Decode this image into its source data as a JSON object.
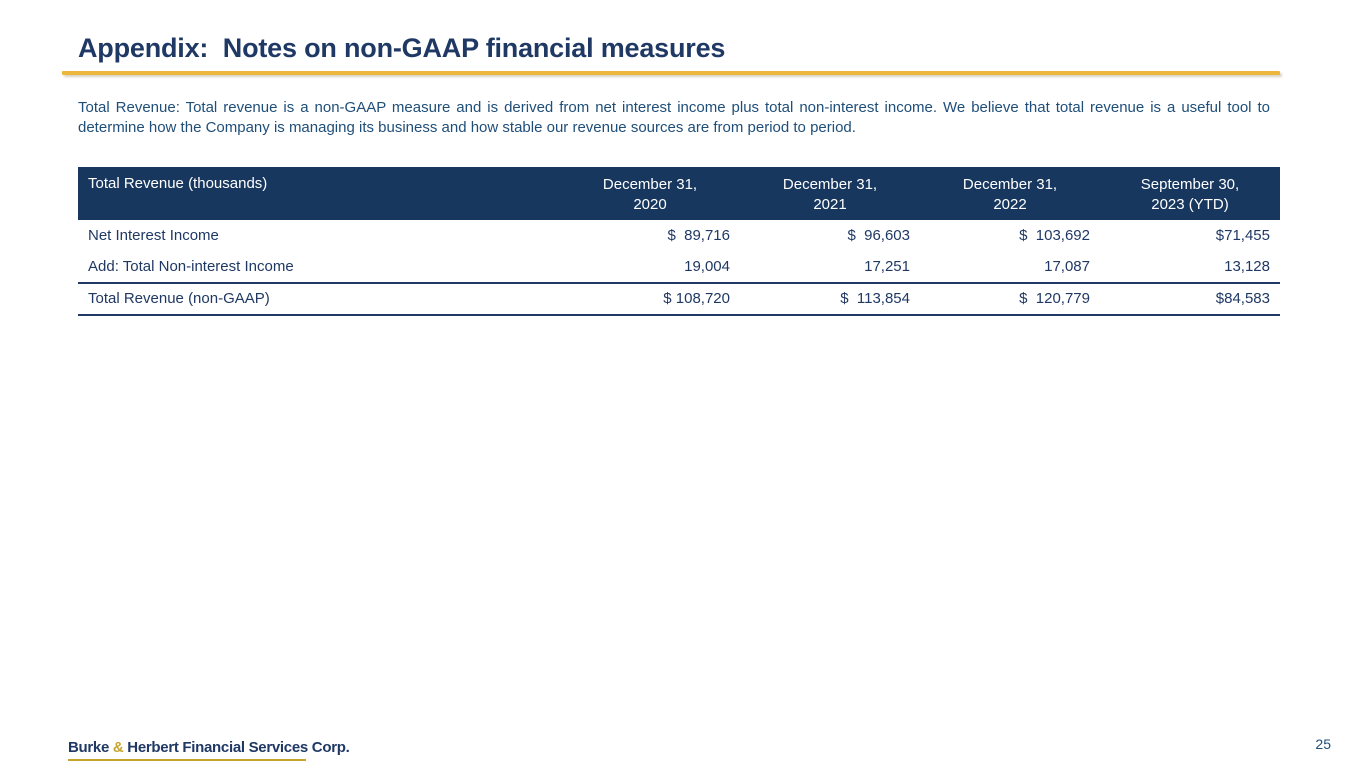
{
  "colors": {
    "navy": "#1F3864",
    "body-blue": "#1F4E79",
    "header-bg": "#17375E",
    "gold": "#EDB63C",
    "logo-gold": "#C7A42B"
  },
  "slide": {
    "title": "Appendix:  Notes on non-GAAP financial measures"
  },
  "intro": {
    "text": "Total Revenue: Total revenue is a non-GAAP measure and is derived from net interest income plus total non-interest income. We believe that total revenue is a useful tool to determine how the Company is managing its business and how stable our revenue sources are from period to period."
  },
  "table": {
    "header": {
      "label": "Total Revenue (thousands)",
      "columns": [
        {
          "line1": "December 31,",
          "line2": "2020"
        },
        {
          "line1": "December 31,",
          "line2": "2021"
        },
        {
          "line1": "December 31,",
          "line2": "2022"
        },
        {
          "line1": "September 30,",
          "line2": "2023 (YTD)"
        }
      ]
    },
    "rows": [
      {
        "label": "Net Interest Income",
        "values": [
          "$  89,716",
          "$  96,603",
          "$  103,692",
          "$71,455"
        ]
      },
      {
        "label": "Add: Total Non-interest Income",
        "values": [
          "19,004",
          "17,251",
          "17,087",
          "13,128"
        ]
      },
      {
        "label": "Total Revenue (non-GAAP)",
        "values": [
          "$ 108,720",
          "$  113,854",
          "$  120,779",
          "$84,583"
        ]
      }
    ]
  },
  "footer": {
    "logo": {
      "part1": "Burke ",
      "amp": "&",
      "part2": " Herbert Financial Services Corp."
    },
    "page_number": "25"
  }
}
